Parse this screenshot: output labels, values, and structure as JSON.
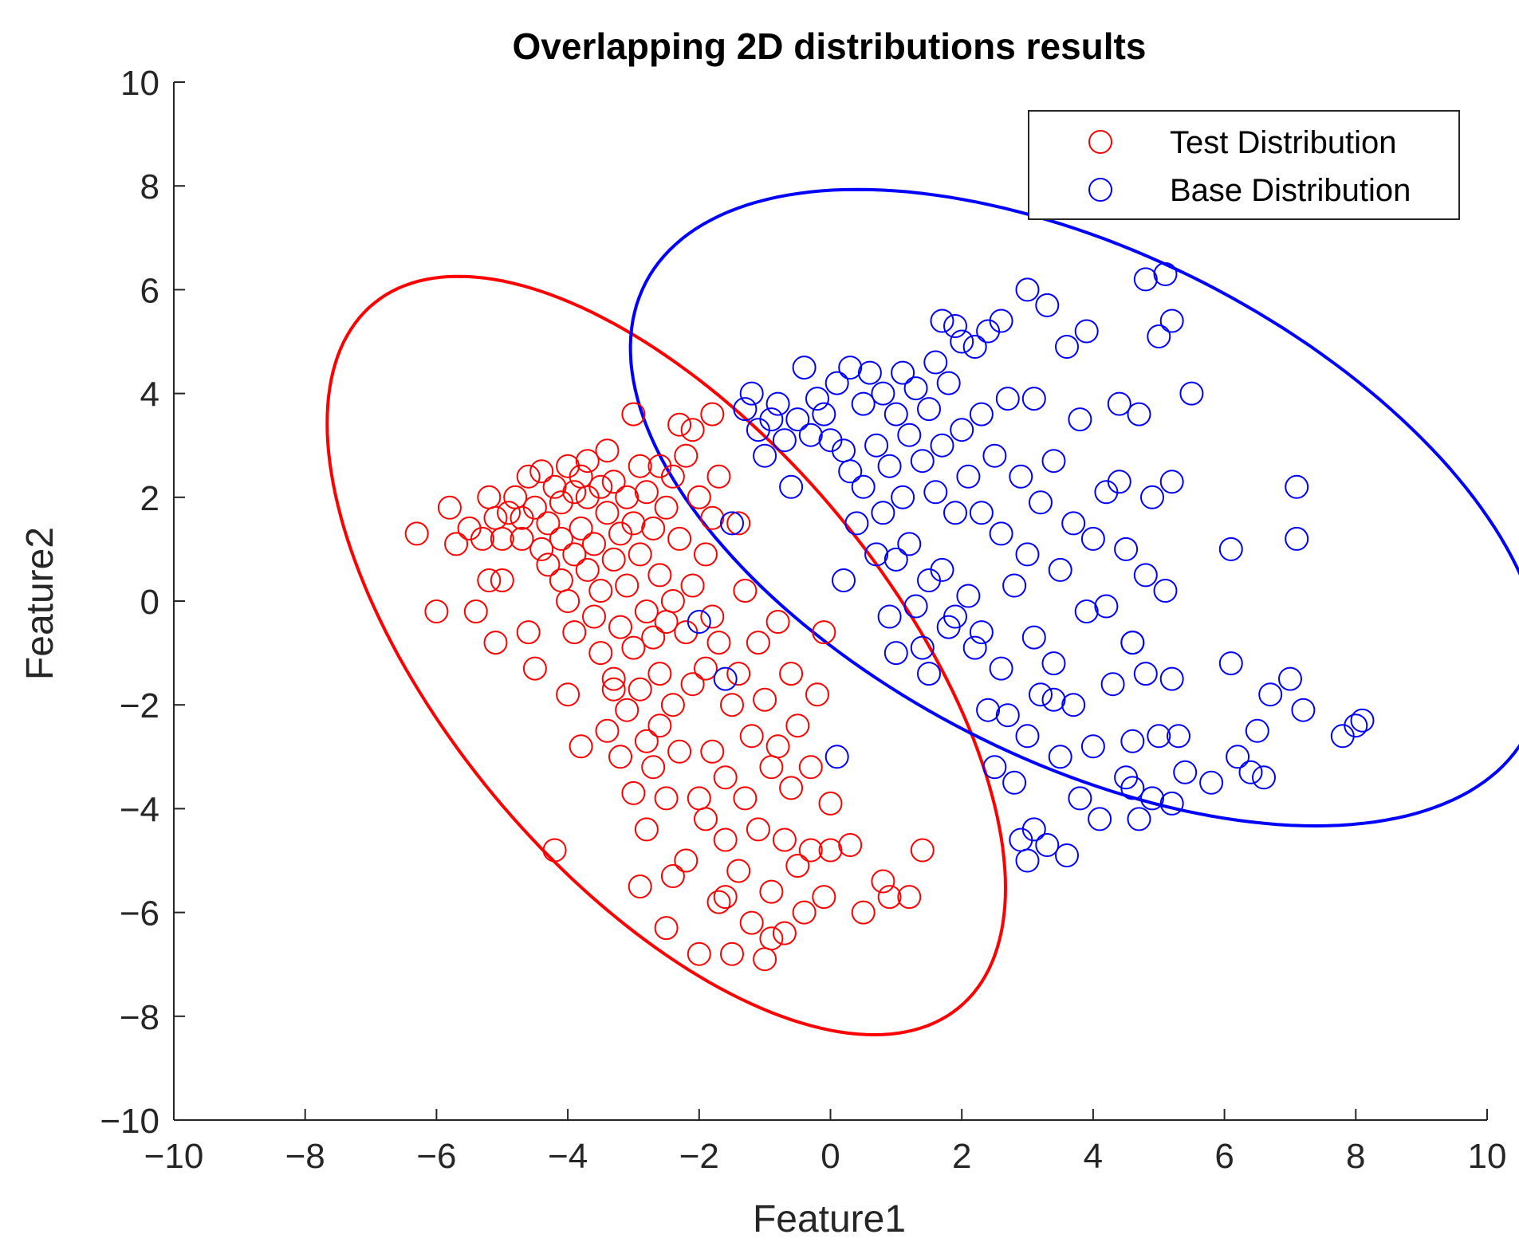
{
  "chart_data": {
    "type": "scatter",
    "title": "Overlapping 2D distributions results",
    "xlabel": "Feature1",
    "ylabel": "Feature2",
    "xlim": [
      -10,
      10
    ],
    "ylim": [
      -10,
      10
    ],
    "xticks": [
      -10,
      -8,
      -6,
      -4,
      -2,
      0,
      2,
      4,
      6,
      8,
      10
    ],
    "yticks": [
      -10,
      -8,
      -6,
      -4,
      -2,
      0,
      2,
      4,
      6,
      8,
      10
    ],
    "xtick_labels": [
      "−10",
      "−8",
      "−6",
      "−4",
      "−2",
      "0",
      "2",
      "4",
      "6",
      "8",
      "10"
    ],
    "ytick_labels": [
      "−10",
      "−8",
      "−6",
      "−4",
      "−2",
      "0",
      "2",
      "4",
      "6",
      "8",
      "10"
    ],
    "grid": false,
    "legend_position": "top-right",
    "series": [
      {
        "name": "Test Distribution",
        "color": "#ff0000",
        "marker": "circle-open",
        "points": [
          [
            -6.3,
            1.3
          ],
          [
            -6.0,
            -0.2
          ],
          [
            -5.8,
            1.8
          ],
          [
            -5.7,
            1.1
          ],
          [
            -5.5,
            1.4
          ],
          [
            -5.4,
            -0.2
          ],
          [
            -5.3,
            1.2
          ],
          [
            -5.2,
            2.0
          ],
          [
            -5.2,
            0.4
          ],
          [
            -5.1,
            1.6
          ],
          [
            -5.1,
            -0.8
          ],
          [
            -5.0,
            1.2
          ],
          [
            -5.0,
            0.4
          ],
          [
            -4.9,
            1.7
          ],
          [
            -4.8,
            2.0
          ],
          [
            -4.7,
            1.6
          ],
          [
            -4.7,
            1.2
          ],
          [
            -4.6,
            -0.6
          ],
          [
            -4.6,
            2.4
          ],
          [
            -4.5,
            1.8
          ],
          [
            -4.5,
            -1.3
          ],
          [
            -4.4,
            2.5
          ],
          [
            -4.4,
            1.0
          ],
          [
            -4.3,
            1.5
          ],
          [
            -4.3,
            0.7
          ],
          [
            -4.2,
            2.2
          ],
          [
            -4.2,
            -4.8
          ],
          [
            -4.1,
            1.9
          ],
          [
            -4.1,
            1.2
          ],
          [
            -4.1,
            0.4
          ],
          [
            -4.0,
            2.6
          ],
          [
            -4.0,
            0.0
          ],
          [
            -4.0,
            -1.8
          ],
          [
            -3.9,
            2.1
          ],
          [
            -3.9,
            0.9
          ],
          [
            -3.9,
            -0.6
          ],
          [
            -3.8,
            2.4
          ],
          [
            -3.8,
            1.4
          ],
          [
            -3.8,
            -2.8
          ],
          [
            -3.7,
            2.7
          ],
          [
            -3.7,
            2.0
          ],
          [
            -3.7,
            0.6
          ],
          [
            -3.6,
            -0.3
          ],
          [
            -3.6,
            1.1
          ],
          [
            -3.5,
            2.2
          ],
          [
            -3.5,
            0.2
          ],
          [
            -3.5,
            -1.0
          ],
          [
            -3.4,
            2.9
          ],
          [
            -3.4,
            1.7
          ],
          [
            -3.4,
            -2.5
          ],
          [
            -3.3,
            2.3
          ],
          [
            -3.3,
            0.8
          ],
          [
            -3.3,
            -1.5
          ],
          [
            -3.2,
            -3.0
          ],
          [
            -3.2,
            1.3
          ],
          [
            -3.2,
            -0.5
          ],
          [
            -3.1,
            2.0
          ],
          [
            -3.1,
            0.3
          ],
          [
            -3.1,
            -2.1
          ],
          [
            -3.0,
            3.6
          ],
          [
            -3.0,
            1.5
          ],
          [
            -3.0,
            -0.9
          ],
          [
            -3.0,
            -3.7
          ],
          [
            -2.9,
            2.6
          ],
          [
            -2.9,
            0.9
          ],
          [
            -2.9,
            -1.7
          ],
          [
            -2.9,
            -5.5
          ],
          [
            -2.8,
            2.1
          ],
          [
            -2.8,
            -0.2
          ],
          [
            -2.8,
            -2.7
          ],
          [
            -2.8,
            -4.4
          ],
          [
            -2.7,
            1.4
          ],
          [
            -2.7,
            -0.7
          ],
          [
            -2.7,
            -3.2
          ],
          [
            -2.6,
            2.6
          ],
          [
            -2.6,
            0.5
          ],
          [
            -2.6,
            -1.4
          ],
          [
            -2.6,
            -2.4
          ],
          [
            -2.5,
            1.8
          ],
          [
            -2.5,
            -0.4
          ],
          [
            -2.5,
            -3.8
          ],
          [
            -2.5,
            -6.3
          ],
          [
            -2.4,
            2.4
          ],
          [
            -2.4,
            0.0
          ],
          [
            -2.4,
            -2.0
          ],
          [
            -2.3,
            3.4
          ],
          [
            -2.3,
            1.2
          ],
          [
            -2.3,
            -2.9
          ],
          [
            -2.2,
            2.8
          ],
          [
            -2.2,
            -0.6
          ],
          [
            -2.2,
            -5.0
          ],
          [
            -2.1,
            3.3
          ],
          [
            -2.1,
            0.3
          ],
          [
            -2.1,
            -1.6
          ],
          [
            -2.0,
            -3.8
          ],
          [
            -2.0,
            -6.8
          ],
          [
            -2.0,
            2.0
          ],
          [
            -1.9,
            0.9
          ],
          [
            -1.9,
            -1.3
          ],
          [
            -1.9,
            -4.2
          ],
          [
            -1.8,
            3.6
          ],
          [
            -1.8,
            1.6
          ],
          [
            -1.8,
            -0.3
          ],
          [
            -1.8,
            -2.9
          ],
          [
            -1.7,
            -5.8
          ],
          [
            -1.7,
            2.4
          ],
          [
            -1.7,
            -0.8
          ],
          [
            -1.6,
            -3.4
          ],
          [
            -1.6,
            -4.6
          ],
          [
            -1.5,
            -2.0
          ],
          [
            -1.5,
            -6.8
          ],
          [
            -1.4,
            1.5
          ],
          [
            -1.4,
            -1.4
          ],
          [
            -1.4,
            -5.2
          ],
          [
            -1.3,
            0.2
          ],
          [
            -1.3,
            -3.8
          ],
          [
            -1.2,
            -2.6
          ],
          [
            -1.2,
            -6.2
          ],
          [
            -1.1,
            -0.8
          ],
          [
            -1.1,
            -4.4
          ],
          [
            -1.0,
            -6.9
          ],
          [
            -1.0,
            -1.9
          ],
          [
            -0.9,
            -3.2
          ],
          [
            -0.9,
            -5.6
          ],
          [
            -0.8,
            -0.4
          ],
          [
            -0.8,
            -2.8
          ],
          [
            -0.7,
            -4.6
          ],
          [
            -0.7,
            -6.4
          ],
          [
            -0.6,
            -1.4
          ],
          [
            -0.6,
            -3.6
          ],
          [
            -0.5,
            -5.1
          ],
          [
            -0.5,
            -2.4
          ],
          [
            -0.4,
            -6.0
          ],
          [
            -0.3,
            -3.2
          ],
          [
            -0.3,
            -4.8
          ],
          [
            -0.2,
            -1.8
          ],
          [
            -0.1,
            -5.7
          ],
          [
            -0.1,
            -0.6
          ],
          [
            0.0,
            -3.9
          ],
          [
            0.0,
            -4.8
          ],
          [
            0.3,
            -4.7
          ],
          [
            0.5,
            -6.0
          ],
          [
            0.8,
            -5.4
          ],
          [
            0.9,
            -5.7
          ],
          [
            1.2,
            -5.7
          ],
          [
            1.4,
            -4.8
          ],
          [
            -0.9,
            -6.5
          ],
          [
            -1.6,
            -5.7
          ],
          [
            -2.4,
            -5.3
          ],
          [
            -3.3,
            -1.7
          ]
        ]
      },
      {
        "name": "Base Distribution",
        "color": "#0000ff",
        "marker": "circle-open",
        "points": [
          [
            -2.0,
            -0.4
          ],
          [
            -1.5,
            1.5
          ],
          [
            -1.6,
            -1.5
          ],
          [
            -1.3,
            3.7
          ],
          [
            -1.2,
            4.0
          ],
          [
            -1.1,
            3.3
          ],
          [
            -1.0,
            2.8
          ],
          [
            -0.9,
            3.5
          ],
          [
            -0.8,
            3.8
          ],
          [
            -0.7,
            3.1
          ],
          [
            -0.6,
            2.2
          ],
          [
            -0.5,
            3.5
          ],
          [
            -0.4,
            4.5
          ],
          [
            -0.3,
            3.2
          ],
          [
            -0.2,
            3.9
          ],
          [
            -0.1,
            3.6
          ],
          [
            0.0,
            3.1
          ],
          [
            0.1,
            4.2
          ],
          [
            0.2,
            2.9
          ],
          [
            0.2,
            0.4
          ],
          [
            0.3,
            2.5
          ],
          [
            0.3,
            4.5
          ],
          [
            0.4,
            1.5
          ],
          [
            0.5,
            3.8
          ],
          [
            0.5,
            2.2
          ],
          [
            0.6,
            4.4
          ],
          [
            0.7,
            3.0
          ],
          [
            0.7,
            0.9
          ],
          [
            0.8,
            4.0
          ],
          [
            0.8,
            1.7
          ],
          [
            0.9,
            2.6
          ],
          [
            0.9,
            -0.3
          ],
          [
            1.0,
            3.6
          ],
          [
            1.0,
            0.8
          ],
          [
            1.1,
            4.4
          ],
          [
            1.1,
            2.0
          ],
          [
            1.2,
            3.2
          ],
          [
            1.2,
            1.1
          ],
          [
            1.3,
            -0.1
          ],
          [
            1.3,
            4.1
          ],
          [
            1.4,
            2.7
          ],
          [
            1.4,
            -0.9
          ],
          [
            1.5,
            3.7
          ],
          [
            1.5,
            0.4
          ],
          [
            1.5,
            -1.4
          ],
          [
            1.6,
            4.6
          ],
          [
            1.6,
            2.1
          ],
          [
            1.7,
            5.4
          ],
          [
            1.7,
            3.0
          ],
          [
            1.7,
            0.6
          ],
          [
            1.8,
            -0.5
          ],
          [
            1.8,
            4.2
          ],
          [
            1.9,
            5.3
          ],
          [
            1.9,
            1.7
          ],
          [
            1.9,
            -0.3
          ],
          [
            2.0,
            3.3
          ],
          [
            2.0,
            5.0
          ],
          [
            2.1,
            2.4
          ],
          [
            2.1,
            0.1
          ],
          [
            2.2,
            -0.9
          ],
          [
            2.2,
            4.9
          ],
          [
            2.3,
            3.6
          ],
          [
            2.3,
            1.7
          ],
          [
            2.4,
            5.2
          ],
          [
            2.4,
            -2.1
          ],
          [
            2.5,
            2.8
          ],
          [
            2.5,
            -3.2
          ],
          [
            2.6,
            1.3
          ],
          [
            2.6,
            5.4
          ],
          [
            2.6,
            -1.3
          ],
          [
            2.7,
            -2.2
          ],
          [
            2.7,
            3.9
          ],
          [
            2.8,
            -3.5
          ],
          [
            2.8,
            0.3
          ],
          [
            2.9,
            -4.6
          ],
          [
            2.9,
            2.4
          ],
          [
            3.0,
            -5.0
          ],
          [
            3.0,
            6.0
          ],
          [
            3.0,
            0.9
          ],
          [
            3.0,
            -2.6
          ],
          [
            3.1,
            3.9
          ],
          [
            3.1,
            -0.7
          ],
          [
            3.1,
            -4.4
          ],
          [
            3.2,
            -1.8
          ],
          [
            3.2,
            1.9
          ],
          [
            3.3,
            5.7
          ],
          [
            3.3,
            -4.7
          ],
          [
            3.4,
            2.7
          ],
          [
            3.4,
            -1.2
          ],
          [
            3.5,
            -3.0
          ],
          [
            3.5,
            0.6
          ],
          [
            3.6,
            4.9
          ],
          [
            3.6,
            -4.9
          ],
          [
            3.7,
            1.5
          ],
          [
            3.7,
            -2.0
          ],
          [
            3.8,
            3.5
          ],
          [
            3.8,
            -3.8
          ],
          [
            3.9,
            -0.2
          ],
          [
            3.9,
            5.2
          ],
          [
            4.0,
            1.2
          ],
          [
            4.0,
            -2.8
          ],
          [
            4.1,
            -4.2
          ],
          [
            4.2,
            2.1
          ],
          [
            4.2,
            -0.1
          ],
          [
            4.3,
            -1.6
          ],
          [
            4.4,
            3.8
          ],
          [
            4.4,
            2.3
          ],
          [
            4.5,
            -3.4
          ],
          [
            4.5,
            1.0
          ],
          [
            4.6,
            -0.8
          ],
          [
            4.6,
            -2.7
          ],
          [
            4.7,
            3.6
          ],
          [
            4.7,
            -4.2
          ],
          [
            4.8,
            0.5
          ],
          [
            4.8,
            -1.4
          ],
          [
            4.9,
            -3.8
          ],
          [
            4.9,
            2.0
          ],
          [
            5.0,
            5.1
          ],
          [
            5.0,
            -2.6
          ],
          [
            5.1,
            6.3
          ],
          [
            5.1,
            0.2
          ],
          [
            5.2,
            -1.5
          ],
          [
            5.2,
            2.3
          ],
          [
            5.2,
            -3.9
          ],
          [
            5.3,
            -2.6
          ],
          [
            5.4,
            -3.3
          ],
          [
            5.5,
            4.0
          ],
          [
            5.8,
            -3.5
          ],
          [
            6.1,
            1.0
          ],
          [
            6.1,
            -1.2
          ],
          [
            6.2,
            -3.0
          ],
          [
            6.4,
            -3.3
          ],
          [
            6.5,
            -2.5
          ],
          [
            6.6,
            -3.4
          ],
          [
            6.7,
            -1.8
          ],
          [
            7.0,
            -1.5
          ],
          [
            7.1,
            2.2
          ],
          [
            7.1,
            1.2
          ],
          [
            7.2,
            -2.1
          ],
          [
            7.8,
            -2.6
          ],
          [
            8.0,
            -2.4
          ],
          [
            8.1,
            -2.3
          ],
          [
            4.8,
            6.2
          ],
          [
            5.2,
            5.4
          ],
          [
            4.6,
            -3.6
          ],
          [
            2.3,
            -0.6
          ],
          [
            1.0,
            -1.0
          ],
          [
            3.4,
            -1.9
          ],
          [
            4.6,
            -0.8
          ],
          [
            0.1,
            -3.0
          ]
        ]
      }
    ],
    "ellipses": [
      {
        "series": "Test Distribution",
        "color": "#ff0000",
        "center": [
          -2.5,
          -1.05
        ],
        "semi_major": 8.17,
        "semi_minor": 3.65,
        "angle_deg": -60
      },
      {
        "series": "Base Distribution",
        "color": "#0000ff",
        "center": [
          3.9,
          1.8
        ],
        "semi_major": 8.06,
        "semi_minor": 4.57,
        "angle_deg": -38
      }
    ]
  }
}
